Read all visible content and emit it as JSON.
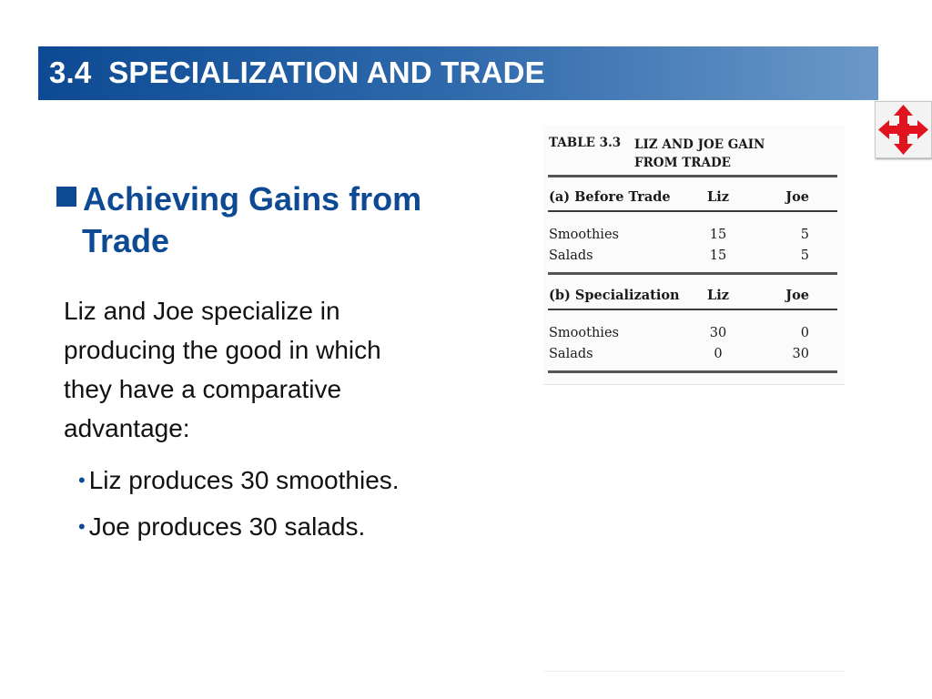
{
  "slide": {
    "title": "3.4  SPECIALIZATION AND TRADE",
    "heading_line1": "Achieving Gains from",
    "heading_line2": "Trade",
    "body_lines": [
      "Liz and Joe specialize in",
      "producing the good in which",
      "they have a comparative",
      "advantage:"
    ],
    "sub_bullets": [
      "Liz produces 30 smoothies.",
      "Joe produces 30 salads."
    ]
  },
  "table": {
    "caption": "TABLE 3.3",
    "title_line1": "LIZ AND JOE GAIN",
    "title_line2": "FROM TRADE",
    "sections": [
      {
        "header": "(a) Before Trade",
        "col1": "Liz",
        "col2": "Joe",
        "rows": [
          {
            "label": "Smoothies",
            "liz": "15",
            "joe": "5"
          },
          {
            "label": "Salads",
            "liz": "15",
            "joe": "5"
          }
        ]
      },
      {
        "header": "(b) Specialization",
        "col1": "Liz",
        "col2": "Joe",
        "rows": [
          {
            "label": "Smoothies",
            "liz": "30",
            "joe": "0"
          },
          {
            "label": "Salads",
            "liz": "0",
            "joe": "30"
          }
        ]
      }
    ]
  },
  "icons": {
    "nav": "four-way-arrows-icon",
    "nav_color": "#e0141e",
    "accent": "#0d4a93"
  }
}
